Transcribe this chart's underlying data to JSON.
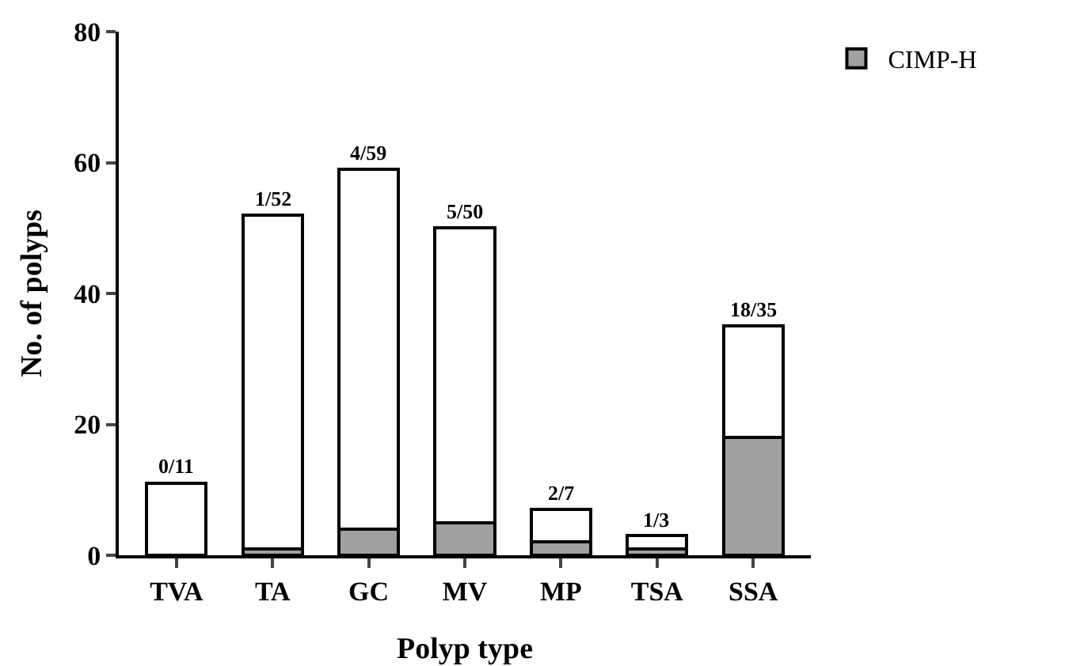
{
  "chart_data": {
    "type": "bar",
    "stacked": true,
    "xlabel": "Polyp type",
    "ylabel": "No. of polyps",
    "categories": [
      "TVA",
      "TA",
      "GC",
      "MV",
      "MP",
      "TSA",
      "SSA"
    ],
    "series": [
      {
        "name": "CIMP-H",
        "color": "#a0a0a0",
        "values": [
          0,
          1,
          4,
          5,
          2,
          1,
          18
        ]
      },
      {
        "color": "#ffffff",
        "values": [
          11,
          51,
          55,
          45,
          5,
          2,
          17
        ]
      }
    ],
    "annotations": [
      {
        "text": "0/11",
        "x": "TVA",
        "y": 11
      },
      {
        "text": "1/52",
        "x": "TA",
        "y": 52
      },
      {
        "text": "4/59",
        "x": "GC",
        "y": 59
      },
      {
        "text": "5/50",
        "x": "MV",
        "y": 50
      },
      {
        "text": "2/7",
        "x": "MP",
        "y": 7
      },
      {
        "text": "1/3",
        "x": "TSA",
        "y": 3
      },
      {
        "text": "18/35",
        "x": "SSA",
        "y": 35
      }
    ],
    "ylim": [
      0,
      80
    ],
    "yticks": [
      0,
      20,
      40,
      60,
      80
    ],
    "grid": false,
    "legend": "top right"
  }
}
